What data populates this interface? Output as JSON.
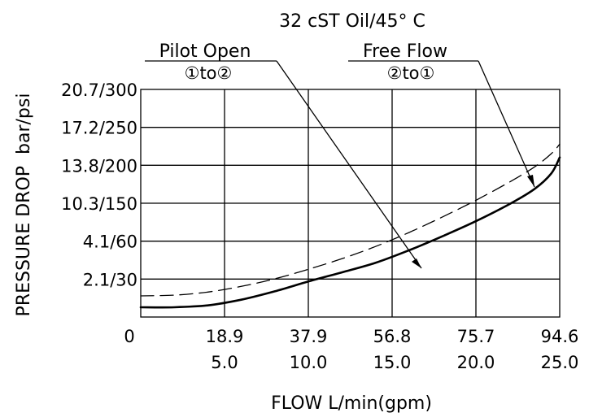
{
  "chart_data": {
    "type": "line",
    "title": "32 cST Oil/45° C",
    "xlabel": "FLOW L/min(gpm)",
    "ylabel": "PRESSURE DROP  bar/psi",
    "x_tick_labels": [
      {
        "lmin": "0",
        "gpm": ""
      },
      {
        "lmin": "18.9",
        "gpm": "5.0"
      },
      {
        "lmin": "37.9",
        "gpm": "10.0"
      },
      {
        "lmin": "56.8",
        "gpm": "15.0"
      },
      {
        "lmin": "75.7",
        "gpm": "20.0"
      },
      {
        "lmin": "94.6",
        "gpm": "25.0"
      }
    ],
    "y_tick_labels": [
      "20.7/300",
      "17.2/250",
      "13.8/200",
      "10.3/150",
      "4.1/60",
      "2.1/30"
    ],
    "xlim": [
      0,
      25
    ],
    "grid": true,
    "x": [
      0,
      2,
      4,
      6,
      8,
      10,
      12,
      14,
      16,
      18,
      20,
      22,
      23.5,
      24.5,
      25
    ],
    "series": [
      {
        "name": "Pilot Open",
        "sublabel": "①to②",
        "style": "solid",
        "values": [
          0,
          0,
          0.05,
          0.2,
          0.42,
          0.68,
          0.92,
          1.17,
          1.5,
          1.87,
          2.27,
          2.72,
          3.12,
          3.53,
          3.95
        ]
      },
      {
        "name": "Free Flow",
        "sublabel": "②to①",
        "style": "dashed",
        "values": [
          0.3,
          0.32,
          0.4,
          0.55,
          0.75,
          1.0,
          1.28,
          1.6,
          1.97,
          2.38,
          2.82,
          3.3,
          3.7,
          4.05,
          4.3
        ]
      }
    ]
  }
}
